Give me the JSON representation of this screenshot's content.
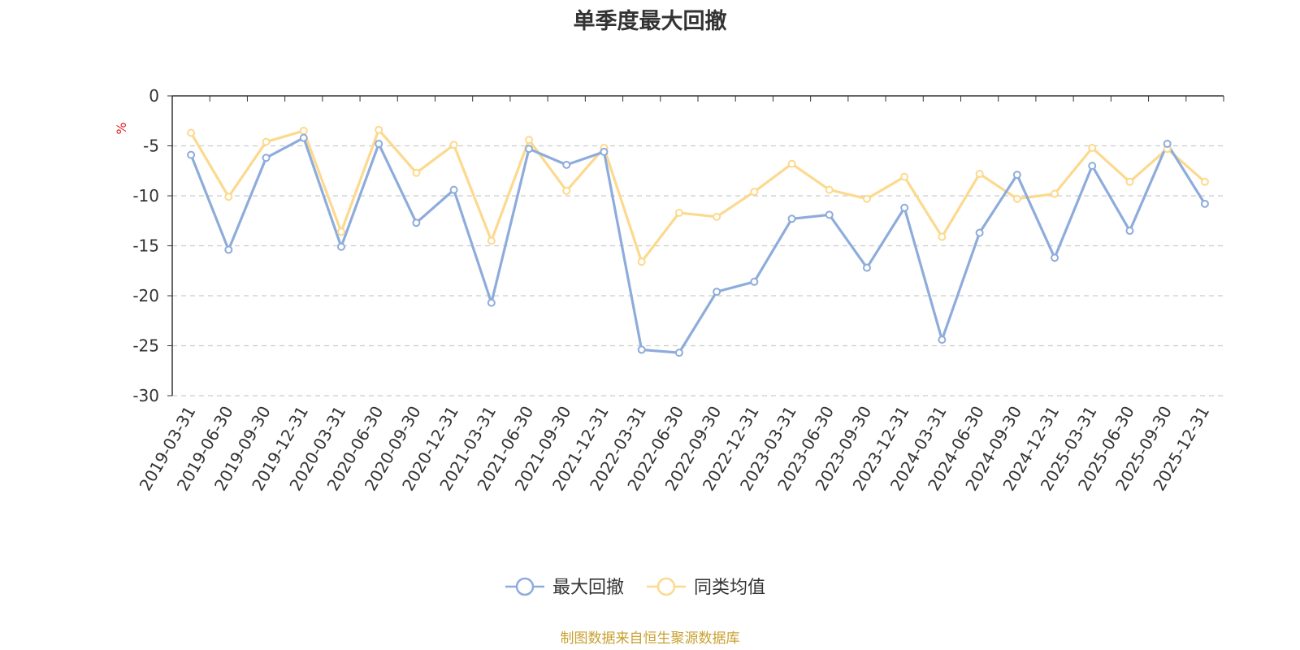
{
  "chart_data": {
    "type": "line",
    "title": "单季度最大回撤",
    "ylabel": "%",
    "ylim": [
      -30,
      0
    ],
    "yticks": [
      0,
      -5,
      -10,
      -15,
      -20,
      -25,
      -30
    ],
    "grid": true,
    "legend_position": "bottom",
    "categories": [
      "2019-03-31",
      "2019-06-30",
      "2019-09-30",
      "2019-12-31",
      "2020-03-31",
      "2020-06-30",
      "2020-09-30",
      "2020-12-31",
      "2021-03-31",
      "2021-06-30",
      "2021-09-30",
      "2021-12-31",
      "2022-03-31",
      "2022-06-30",
      "2022-09-30",
      "2022-12-31",
      "2023-03-31",
      "2023-06-30",
      "2023-09-30",
      "2023-12-31",
      "2024-03-31",
      "2024-06-30",
      "2024-09-30",
      "2024-12-31",
      "2025-03-31",
      "2025-06-30",
      "2025-09-30",
      "2025-12-31"
    ],
    "series": [
      {
        "name": "最大回撤",
        "color": "#8eacdb",
        "values": [
          -5.9,
          -15.4,
          -6.2,
          -4.2,
          -15.1,
          -4.8,
          -12.7,
          -9.4,
          -20.7,
          -5.3,
          -6.9,
          -5.6,
          -25.4,
          -25.7,
          -19.6,
          -18.6,
          -12.3,
          -11.9,
          -17.2,
          -11.2,
          -24.4,
          -13.7,
          -7.9,
          -16.2,
          -7.0,
          -13.5,
          -4.8,
          -10.8
        ]
      },
      {
        "name": "同类均值",
        "color": "#fcd98e",
        "values": [
          -3.7,
          -10.1,
          -4.6,
          -3.5,
          -13.6,
          -3.4,
          -7.7,
          -4.9,
          -14.5,
          -4.4,
          -9.5,
          -5.2,
          -16.6,
          -11.7,
          -12.1,
          -9.6,
          -6.8,
          -9.4,
          -10.3,
          -8.1,
          -14.1,
          -7.8,
          -10.3,
          -9.8,
          -5.2,
          -8.6,
          -5.3,
          -8.6
        ]
      }
    ]
  },
  "source_text": "制图数据来自恒生聚源数据库"
}
